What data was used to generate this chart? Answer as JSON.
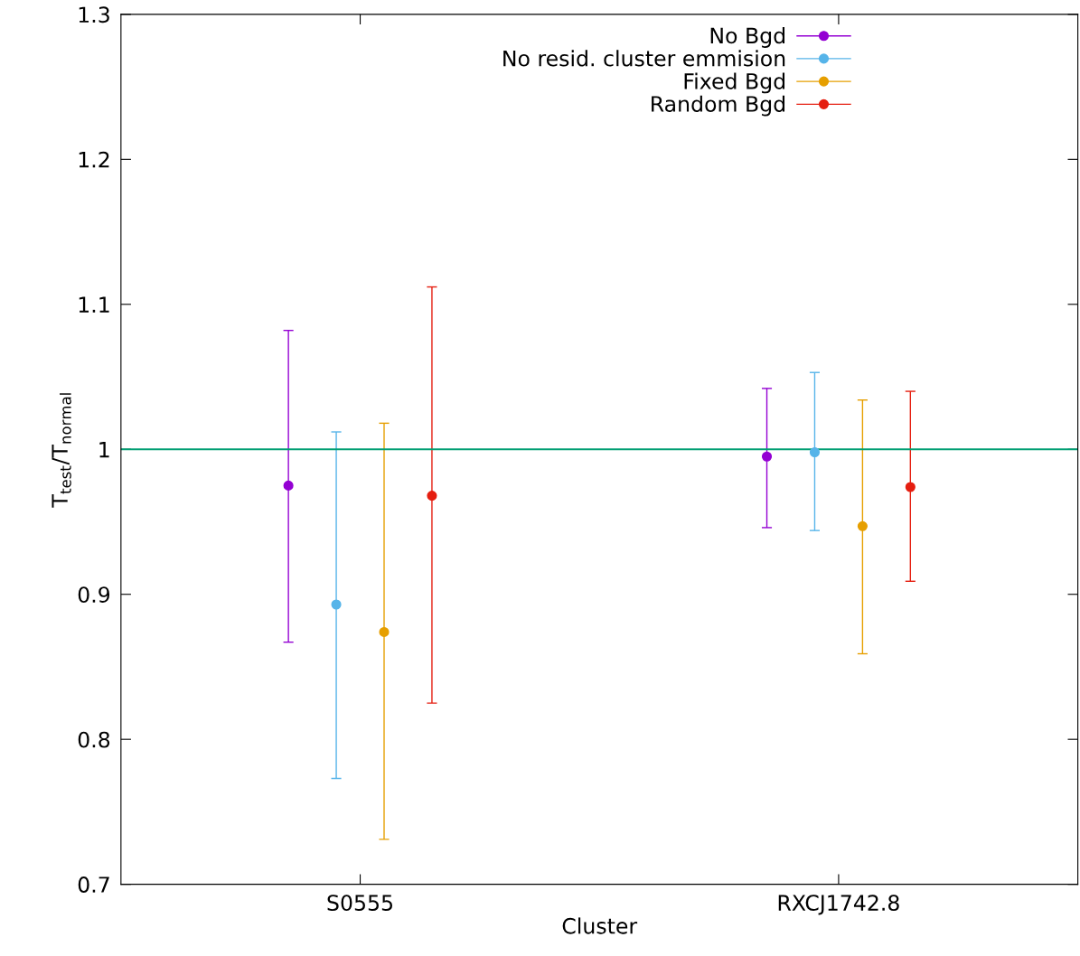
{
  "chart_data": {
    "type": "scatter",
    "xlabel": "Cluster",
    "ylabel": "T$_{test}$/T$_{normal}$",
    "categories": [
      "S0555",
      "RXCJ1742.8"
    ],
    "ylim": [
      0.7,
      1.3
    ],
    "yticks": [
      0.7,
      0.8,
      0.9,
      1,
      1.1,
      1.2,
      1.3
    ],
    "grid": false,
    "legend": "top",
    "marker": "circle",
    "ref_lines": [
      {
        "axis": "y",
        "value": 1,
        "label": null,
        "color": "#009e73"
      }
    ],
    "series": [
      {
        "name": "No Bgd",
        "color": "#9400d3",
        "values": [
          0.975,
          0.995
        ],
        "errors": [
          [
            0.867,
            1.082
          ],
          [
            0.946,
            1.042
          ]
        ]
      },
      {
        "name": "No resid. cluster emmision",
        "color": "#56b4e9",
        "values": [
          0.893,
          0.998
        ],
        "errors": [
          [
            0.773,
            1.012
          ],
          [
            0.944,
            1.053
          ]
        ]
      },
      {
        "name": "Fixed Bgd",
        "color": "#e69f00",
        "values": [
          0.874,
          0.947
        ],
        "errors": [
          [
            0.731,
            1.018
          ],
          [
            0.859,
            1.034
          ]
        ]
      },
      {
        "name": "Random Bgd",
        "color": "#e51e10",
        "values": [
          0.968,
          0.974
        ],
        "errors": [
          [
            0.825,
            1.112
          ],
          [
            0.909,
            1.04
          ]
        ]
      }
    ]
  }
}
